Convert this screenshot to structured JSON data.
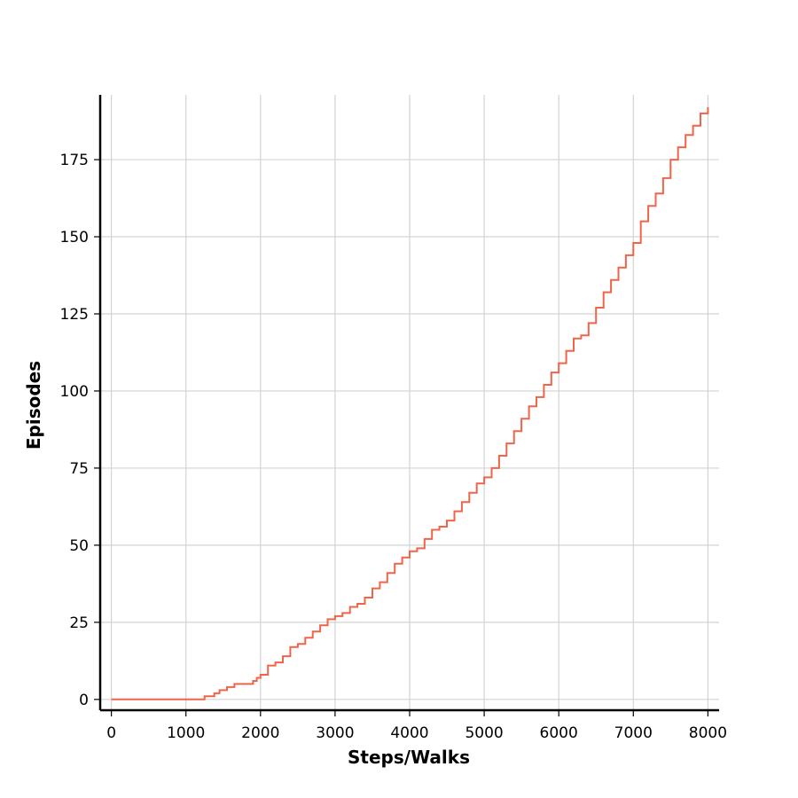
{
  "chart_data": {
    "type": "line",
    "title": "",
    "xlabel": "Steps/Walks",
    "ylabel": "Episodes",
    "xlim": [
      -150,
      8150
    ],
    "ylim": [
      -3.5,
      196
    ],
    "xticks": [
      0,
      1000,
      2000,
      3000,
      4000,
      5000,
      6000,
      7000,
      8000
    ],
    "yticks": [
      0,
      25,
      50,
      75,
      100,
      125,
      150,
      175
    ],
    "xtick_labels": [
      "0",
      "1000",
      "2000",
      "3000",
      "4000",
      "5000",
      "6000",
      "7000",
      "8000"
    ],
    "ytick_labels": [
      "0",
      "25",
      "50",
      "75",
      "100",
      "125",
      "150",
      "175"
    ],
    "grid": true,
    "line_style": "step",
    "series": [
      {
        "color": "#f0644a",
        "x": [
          0,
          1250,
          1380,
          1450,
          1550,
          1650,
          1900,
          1950,
          2000,
          2100,
          2200,
          2300,
          2400,
          2500,
          2600,
          2700,
          2800,
          2900,
          3000,
          3100,
          3200,
          3300,
          3400,
          3500,
          3600,
          3700,
          3800,
          3900,
          4000,
          4100,
          4200,
          4300,
          4400,
          4500,
          4600,
          4700,
          4800,
          4900,
          5000,
          5100,
          5200,
          5300,
          5400,
          5500,
          5600,
          5700,
          5800,
          5900,
          6000,
          6100,
          6200,
          6300,
          6400,
          6500,
          6600,
          6700,
          6800,
          6900,
          7000,
          7100,
          7200,
          7300,
          7400,
          7500,
          7600,
          7700,
          7800,
          7900,
          8000
        ],
        "y": [
          0,
          1,
          2,
          3,
          4,
          5,
          6,
          7,
          8,
          11,
          12,
          14,
          17,
          18,
          20,
          22,
          24,
          26,
          27,
          28,
          30,
          31,
          33,
          36,
          38,
          41,
          44,
          46,
          48,
          49,
          52,
          55,
          56,
          58,
          61,
          64,
          67,
          70,
          72,
          75,
          79,
          83,
          87,
          91,
          95,
          98,
          102,
          106,
          109,
          113,
          117,
          118,
          122,
          127,
          132,
          136,
          140,
          144,
          148,
          155,
          160,
          164,
          169,
          175,
          179,
          183,
          186,
          190,
          192
        ]
      }
    ]
  }
}
